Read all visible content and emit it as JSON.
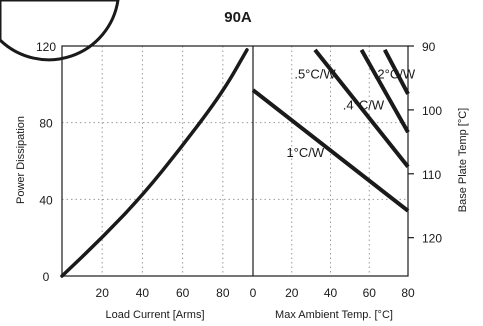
{
  "chart_data": {
    "type": "line",
    "title": "90A",
    "left_panel": {
      "xlabel": "Load Current [Arms]",
      "ylabel": "Power Dissipation",
      "xlim": [
        0,
        95
      ],
      "ylim": [
        0,
        120
      ],
      "x_ticks": [
        20,
        40,
        60,
        80
      ],
      "y_ticks": [
        0,
        40,
        80,
        120
      ],
      "grid": true,
      "series": [
        {
          "x": [
            0,
            20,
            40,
            60,
            80,
            92
          ],
          "y": [
            0,
            20,
            42,
            68,
            96,
            118
          ]
        }
      ]
    },
    "right_panel": {
      "xlabel": "Max Ambient Temp. [°C]",
      "ylabel_right": "Base Plate Temp [°C]",
      "xlim": [
        0,
        80
      ],
      "x_ticks": [
        0,
        20,
        40,
        60,
        80
      ],
      "right_ticks": [
        90,
        100,
        110,
        120
      ],
      "right_lim": [
        90,
        126
      ],
      "grid": true,
      "series": [
        {
          "name": "1°C/W",
          "x": [
            0,
            80
          ],
          "y": [
            97,
            34
          ],
          "label_at": [
            27,
            62
          ]
        },
        {
          "name": ".5°C/W",
          "x": [
            32,
            80
          ],
          "y": [
            118,
            57
          ],
          "label_at": [
            32,
            103
          ]
        },
        {
          "name": ".4°C/W",
          "x": [
            56,
            80
          ],
          "y": [
            118,
            75
          ],
          "label_at": [
            57,
            87
          ]
        },
        {
          "name": ".2°C/W",
          "x": [
            68,
            80
          ],
          "y": [
            118,
            95
          ],
          "label_at": [
            73,
            103
          ]
        }
      ]
    }
  }
}
